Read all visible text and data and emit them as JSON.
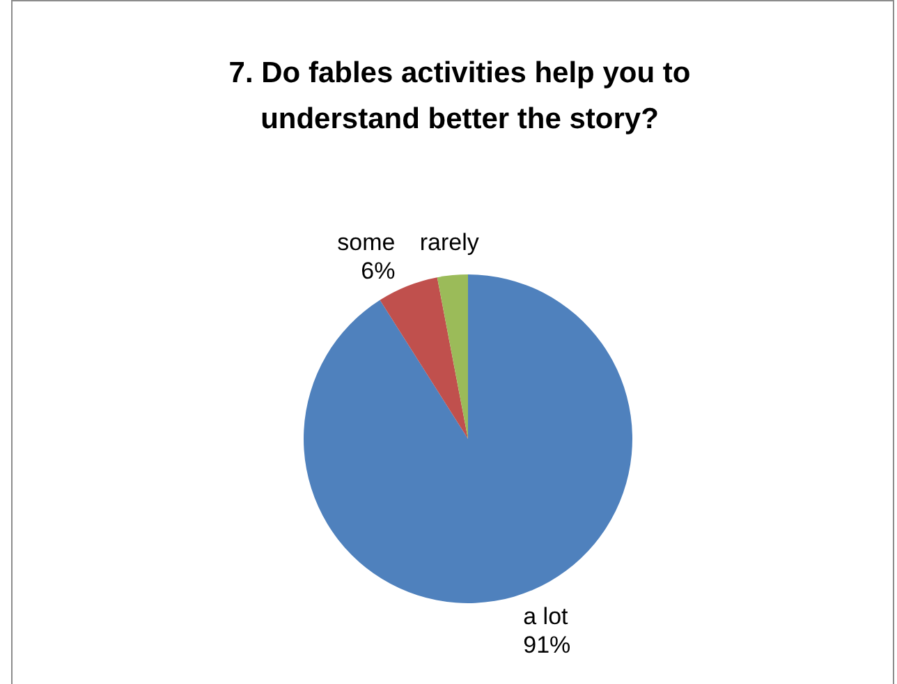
{
  "chart_data": {
    "type": "pie",
    "title": "7. Do fables activities help you to understand better the story?",
    "categories": [
      "a lot",
      "some",
      "rarely"
    ],
    "values": [
      91,
      6,
      3
    ],
    "colors": [
      "#4f81bd",
      "#c0504d",
      "#9bbb59"
    ],
    "value_labels": [
      "91%",
      "6%",
      null
    ]
  }
}
